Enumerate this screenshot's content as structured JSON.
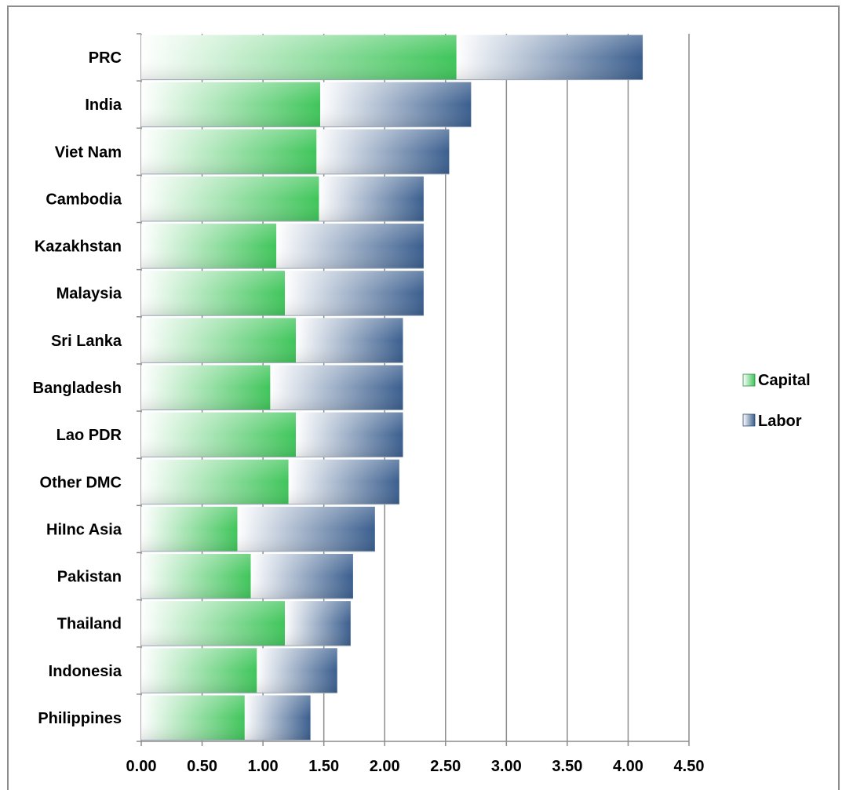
{
  "chart_data": {
    "type": "bar",
    "orientation": "horizontal",
    "stacked": true,
    "categories": [
      "PRC",
      "India",
      "Viet Nam",
      "Cambodia",
      "Kazakhstan",
      "Malaysia",
      "Sri Lanka",
      "Bangladesh",
      "Lao PDR",
      "Other DMC",
      "HiInc Asia",
      "Pakistan",
      "Thailand",
      "Indonesia",
      "Philippines"
    ],
    "series": [
      {
        "name": "Capital",
        "values": [
          2.59,
          1.47,
          1.44,
          1.46,
          1.11,
          1.18,
          1.27,
          1.06,
          1.27,
          1.21,
          0.79,
          0.9,
          1.18,
          0.95,
          0.85
        ]
      },
      {
        "name": "Labor",
        "values": [
          1.53,
          1.24,
          1.09,
          0.86,
          1.21,
          1.14,
          0.88,
          1.09,
          0.88,
          0.91,
          1.13,
          0.84,
          0.54,
          0.66,
          0.54
        ]
      }
    ],
    "xlim": [
      0,
      4.5
    ],
    "x_ticks": [
      "0.00",
      "0.50",
      "1.00",
      "1.50",
      "2.00",
      "2.50",
      "3.00",
      "3.50",
      "4.00",
      "4.50"
    ],
    "grid": "vertical",
    "legend": "right",
    "colors": {
      "Capital": "#3fc55a",
      "Labor": "#3a5e8e",
      "grid": "#8c8c8c",
      "frame": "#8c8c8c"
    }
  }
}
